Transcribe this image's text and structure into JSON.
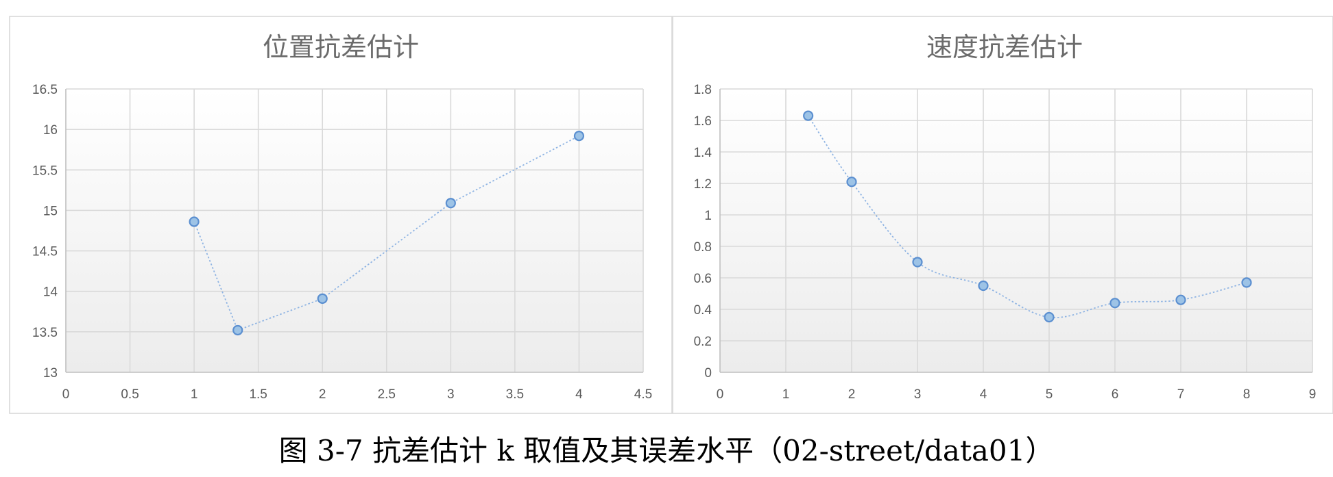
{
  "chart_data": [
    {
      "type": "scatter",
      "title": "位置抗差估计",
      "xlim": [
        0,
        4.5
      ],
      "ylim": [
        13,
        16.5
      ],
      "xticks": [
        "0",
        "0.5",
        "1",
        "1.5",
        "2",
        "2.5",
        "3",
        "3.5",
        "4",
        "4.5"
      ],
      "yticks": [
        "13",
        "13.5",
        "14",
        "14.5",
        "15",
        "15.5",
        "16",
        "16.5"
      ],
      "grid": true,
      "smooth": false,
      "series": [
        {
          "x": [
            1,
            1.34,
            2,
            3,
            4
          ],
          "y": [
            14.86,
            13.52,
            13.91,
            15.09,
            15.92
          ]
        }
      ]
    },
    {
      "type": "scatter",
      "title": "速度抗差估计",
      "xlim": [
        0,
        9
      ],
      "ylim": [
        0,
        1.8
      ],
      "xticks": [
        "0",
        "1",
        "2",
        "3",
        "4",
        "5",
        "6",
        "7",
        "8",
        "9"
      ],
      "yticks": [
        "0",
        "0.2",
        "0.4",
        "0.6",
        "0.8",
        "1",
        "1.2",
        "1.4",
        "1.6",
        "1.8"
      ],
      "grid": true,
      "smooth": true,
      "series": [
        {
          "x": [
            1.34,
            2,
            3,
            4,
            5,
            6,
            7,
            8
          ],
          "y": [
            1.63,
            1.21,
            0.7,
            0.55,
            0.35,
            0.44,
            0.46,
            0.57
          ]
        }
      ]
    }
  ],
  "caption": "图 3-7 抗差估计 k 取值及其误差水平（02-street/data01）"
}
